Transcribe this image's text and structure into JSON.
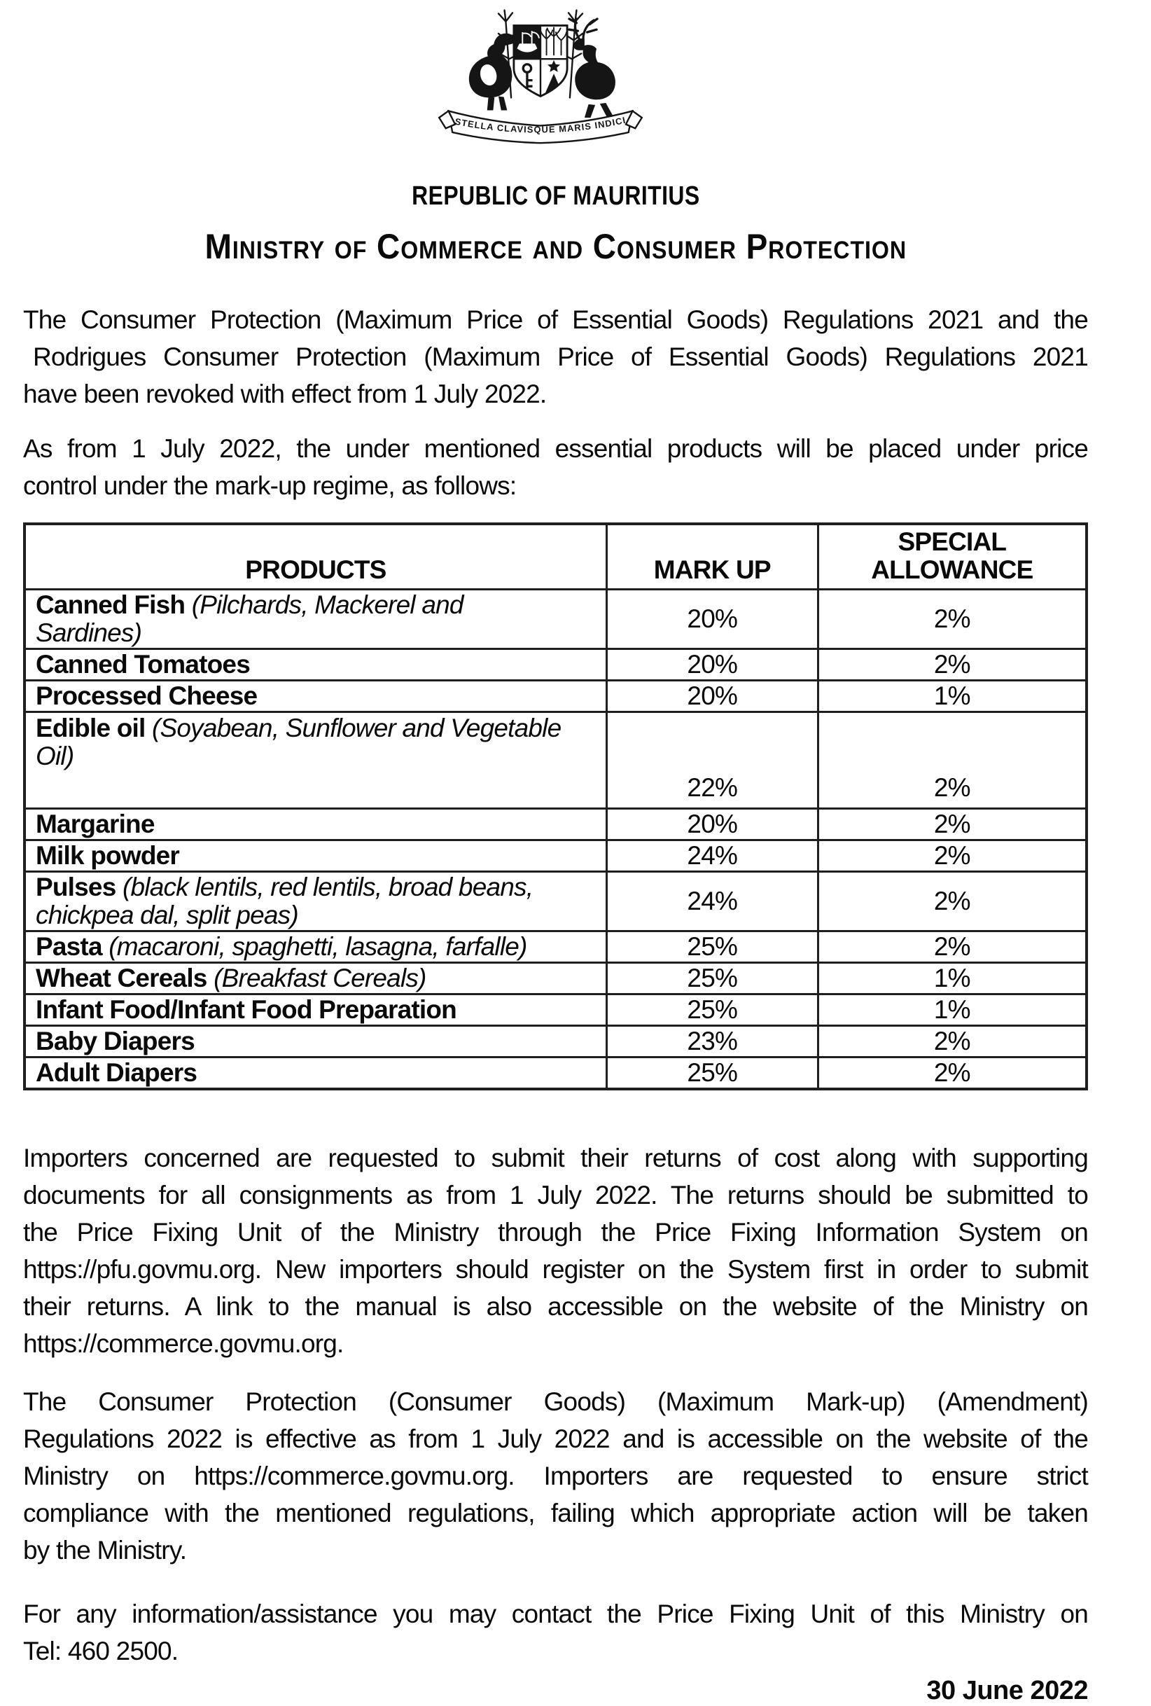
{
  "emblem": {
    "motto": "STELLA CLAVISQUE MARIS INDICI"
  },
  "titles": {
    "country": "REPUBLIC OF MAURITIUS",
    "ministry": "Ministry of Commerce and Consumer Protection"
  },
  "paragraphs": {
    "revocation": [
      "The Consumer Protection (Maximum Price of Essential Goods) Regulations 2021 and the",
      " Rodrigues Consumer Protection (Maximum Price of Essential Goods) Regulations 2021",
      "have been revoked with effect from 1 July 2022."
    ],
    "markup_regime": [
      "As from 1 July 2022, the under mentioned essential products will be placed under price",
      "control under the mark-up regime, as follows:"
    ],
    "importers_returns": [
      "Importers concerned are requested to submit their returns of cost along with supporting",
      "documents for all consignments as from 1 July 2022. The returns should be submitted to",
      "the Price Fixing Unit of the Ministry through the Price Fixing Information System on",
      "https://pfu.govmu.org. New importers should register on the System first in order to submit",
      "their returns. A link to the manual is also accessible on the website of the Ministry on",
      "https://commerce.govmu.org."
    ],
    "amendment": [
      "The Consumer Protection (Consumer Goods) (Maximum Mark-up) (Amendment)",
      "Regulations 2022 is effective as from 1 July 2022 and is accessible on the website of the",
      "Ministry on https://commerce.govmu.org. Importers are requested to ensure strict",
      "compliance with the mentioned regulations, failing which appropriate action will be taken",
      "by the Ministry."
    ],
    "contact": [
      "For any information/assistance you may contact the Price Fixing Unit of this Ministry on",
      "Tel: 460 2500."
    ]
  },
  "table": {
    "headers": [
      "PRODUCTS",
      "MARK UP",
      "SPECIAL ALLOWANCE"
    ],
    "rows": [
      {
        "product": "Canned Fish",
        "detail": "(Pilchards, Mackerel and Sardines)",
        "markup": "20%",
        "allowance": "2%",
        "size": "md"
      },
      {
        "product": "Canned Tomatoes",
        "detail": "",
        "markup": "20%",
        "allowance": "2%",
        "size": ""
      },
      {
        "product": "Processed Cheese",
        "detail": "",
        "markup": "20%",
        "allowance": "1%",
        "size": ""
      },
      {
        "product": "Edible oil",
        "detail": "(Soyabean, Sunflower and Vegetable Oil)",
        "markup": "22%",
        "allowance": "2%",
        "size": "xl"
      },
      {
        "product": "Margarine",
        "detail": "",
        "markup": "20%",
        "allowance": "2%",
        "size": ""
      },
      {
        "product": "Milk powder",
        "detail": "",
        "markup": "24%",
        "allowance": "2%",
        "size": ""
      },
      {
        "product": "Pulses",
        "detail": "(black lentils, red lentils, broad beans, chickpea dal, split peas)",
        "markup": "24%",
        "allowance": "2%",
        "size": "md"
      },
      {
        "product": "Pasta",
        "detail": "(macaroni, spaghetti, lasagna, farfalle)",
        "markup": "25%",
        "allowance": "2%",
        "size": "sm"
      },
      {
        "product": "Wheat Cereals",
        "detail": "(Breakfast Cereals)",
        "markup": "25%",
        "allowance": "1%",
        "size": ""
      },
      {
        "product": "Infant Food/Infant Food Preparation",
        "detail": "",
        "markup": "25%",
        "allowance": "1%",
        "size": ""
      },
      {
        "product": "Baby Diapers",
        "detail": "",
        "markup": "23%",
        "allowance": "2%",
        "size": ""
      },
      {
        "product": "Adult Diapers",
        "detail": "",
        "markup": "25%",
        "allowance": "2%",
        "size": ""
      }
    ]
  },
  "footer": {
    "date": "30 June 2022"
  }
}
